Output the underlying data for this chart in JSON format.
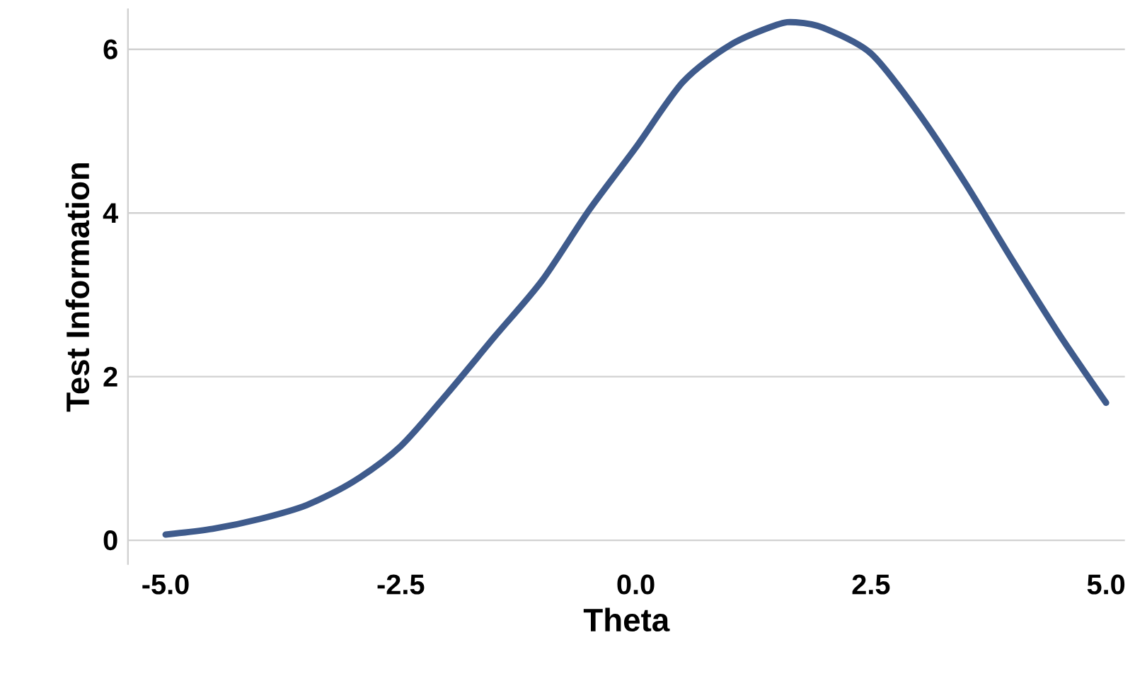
{
  "chart_data": {
    "type": "line",
    "xlabel": "Theta",
    "ylabel": "Test Information",
    "x": [
      -5,
      -4.5,
      -4,
      -3.5,
      -3,
      -2.5,
      -2,
      -1.5,
      -1,
      -0.5,
      0,
      0.5,
      1,
      1.5,
      1.7,
      2,
      2.5,
      3,
      3.5,
      4,
      4.5,
      5
    ],
    "series": [
      {
        "color": "#3f5b8c",
        "values": [
          0.07,
          0.14,
          0.26,
          0.43,
          0.72,
          1.15,
          1.8,
          2.49,
          3.17,
          4.03,
          4.8,
          5.6,
          6.05,
          6.3,
          6.33,
          6.26,
          5.95,
          5.23,
          4.37,
          3.43,
          2.52,
          1.68
        ]
      }
    ],
    "xlim": [
      -5.4,
      5.2
    ],
    "ylim": [
      -0.3,
      6.5
    ],
    "xticks": [
      {
        "value": -5,
        "label": "-5.0"
      },
      {
        "value": -2.5,
        "label": "-2.5"
      },
      {
        "value": 0,
        "label": "0.0"
      },
      {
        "value": 2.5,
        "label": "2.5"
      },
      {
        "value": 5,
        "label": "5.0"
      }
    ],
    "yticks": [
      0,
      2,
      4,
      6
    ],
    "grid": "y",
    "marker": "none",
    "line_style": "solid"
  }
}
